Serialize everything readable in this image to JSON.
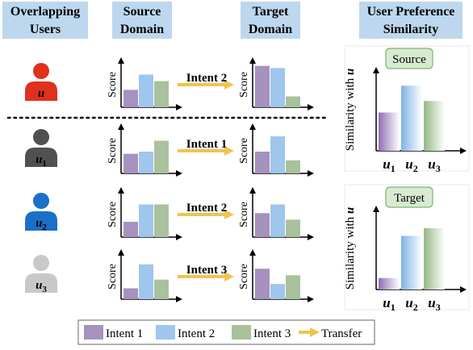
{
  "colors": {
    "header_bg": "#bdd7ee",
    "intent1": "#a691bf",
    "intent2": "#9fc6ec",
    "intent3": "#a9c19c",
    "arrow": "#f2c34e",
    "user_main": "#e0301e",
    "user1": "#505050",
    "user2": "#1a6fc8",
    "user3": "#c8c8c8",
    "tag_bg": "#d6ebd0",
    "tag_border": "#7fb26a"
  },
  "headers": {
    "overlapping_users": [
      "Overlapping",
      "Users"
    ],
    "source_domain": [
      "Source",
      "Domain"
    ],
    "target_domain": [
      "Target",
      "Domain"
    ],
    "user_pref_similarity": [
      "User Preference",
      "Similarity"
    ]
  },
  "axis_label": "Score",
  "users": [
    {
      "label": "u",
      "sub": "",
      "icon": "user-icon",
      "color_key": "user_main",
      "source_scores": [
        0.4,
        0.75,
        0.6
      ],
      "intent": "Intent 2",
      "target_scores": [
        0.95,
        0.9,
        0.25
      ]
    },
    {
      "label": "u",
      "sub": "1",
      "icon": "user-icon",
      "color_key": "user1",
      "source_scores": [
        0.45,
        0.5,
        0.75
      ],
      "intent": "Intent 1",
      "target_scores": [
        0.5,
        0.85,
        0.3
      ]
    },
    {
      "label": "u",
      "sub": "2",
      "icon": "user-icon",
      "color_key": "user2",
      "source_scores": [
        0.35,
        0.75,
        0.75
      ],
      "intent": "Intent 2",
      "target_scores": [
        0.55,
        0.75,
        0.4
      ]
    },
    {
      "label": "u",
      "sub": "3",
      "icon": "user-icon",
      "color_key": "user3",
      "source_scores": [
        0.25,
        0.8,
        0.45
      ],
      "intent": "Intent 3",
      "target_scores": [
        0.7,
        0.35,
        0.55
      ]
    }
  ],
  "similarity": {
    "ylabel": "Similarity with u",
    "source": {
      "tag": "Source",
      "values": [
        0.5,
        0.85,
        0.65
      ]
    },
    "target": {
      "tag": "Target",
      "values": [
        0.15,
        0.7,
        0.8
      ]
    },
    "xlabels": [
      {
        "label": "u",
        "sub": "1"
      },
      {
        "label": "u",
        "sub": "2"
      },
      {
        "label": "u",
        "sub": "3"
      }
    ]
  },
  "legend": [
    {
      "label": "Intent 1",
      "kind": "swatch",
      "color_key": "intent1"
    },
    {
      "label": "Intent 2",
      "kind": "swatch",
      "color_key": "intent2"
    },
    {
      "label": "Intent 3",
      "kind": "swatch",
      "color_key": "intent3"
    },
    {
      "label": "Transfer",
      "kind": "arrow",
      "color_key": "arrow"
    }
  ]
}
